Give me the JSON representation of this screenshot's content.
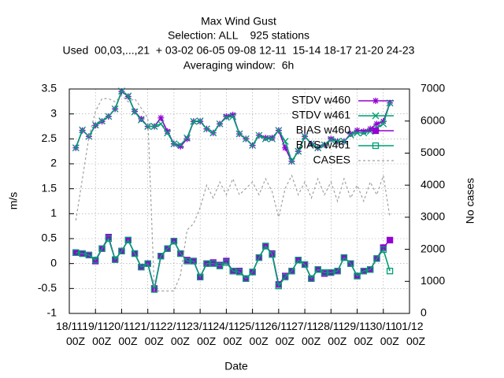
{
  "chart_data": {
    "type": "line",
    "title": "Max Wind Gust",
    "subtitle": [
      "Selection: ALL    925 stations",
      "Used  00,03,...,21  + 03-02 06-05 09-08 12-11  15-14 18-17 21-20 24-23",
      "Averaging window:  6h"
    ],
    "xlabel": "Date",
    "ylabel": "m/s",
    "y2label": "No cases",
    "x": [
      0.25,
      0.5,
      0.75,
      1,
      1.25,
      1.5,
      1.75,
      2,
      2.25,
      2.5,
      2.75,
      3,
      3.25,
      3.5,
      3.75,
      4,
      4.25,
      4.5,
      4.75,
      5,
      5.25,
      5.5,
      5.75,
      6,
      6.25,
      6.5,
      6.75,
      7,
      7.25,
      7.5,
      7.75,
      8,
      8.25,
      8.5,
      8.75,
      9,
      9.25,
      9.5,
      9.75,
      10,
      10.25,
      10.5,
      10.75,
      11,
      11.25,
      11.5,
      11.75,
      12,
      12.25
    ],
    "xlim": [
      0,
      13
    ],
    "xticks": [
      {
        "value": 0,
        "label": "18/11 00Z"
      },
      {
        "value": 1,
        "label": "19/11 00Z"
      },
      {
        "value": 2,
        "label": "20/11 00Z"
      },
      {
        "value": 3,
        "label": "21/11 00Z"
      },
      {
        "value": 4,
        "label": "22/11 00Z"
      },
      {
        "value": 5,
        "label": "23/11 00Z"
      },
      {
        "value": 6,
        "label": "24/11 00Z"
      },
      {
        "value": 7,
        "label": "25/11 00Z"
      },
      {
        "value": 8,
        "label": "26/11 00Z"
      },
      {
        "value": 9,
        "label": "27/11 00Z"
      },
      {
        "value": 10,
        "label": "28/11 00Z"
      },
      {
        "value": 11,
        "label": "29/11 00Z"
      },
      {
        "value": 12,
        "label": "30/11 00Z"
      },
      {
        "value": 13,
        "label": "01/12 00Z"
      }
    ],
    "ylim": [
      -1,
      3.5
    ],
    "yticks": [
      -1,
      -0.5,
      0,
      0.5,
      1,
      1.5,
      2,
      2.5,
      3,
      3.5
    ],
    "y2lim": [
      0,
      7000
    ],
    "y2ticks": [
      0,
      1000,
      2000,
      3000,
      4000,
      5000,
      6000,
      7000
    ],
    "grid": true,
    "legend": "top-right",
    "series": [
      {
        "name": "STDV w460",
        "color": "#9400d3",
        "marker": "star",
        "values": [
          2.32,
          2.67,
          2.55,
          2.77,
          2.85,
          2.95,
          3.1,
          3.45,
          3.35,
          3.05,
          2.9,
          2.75,
          2.75,
          2.92,
          2.65,
          2.4,
          2.35,
          2.5,
          2.85,
          2.85,
          2.7,
          2.62,
          2.8,
          2.95,
          2.98,
          2.6,
          2.5,
          2.37,
          2.57,
          2.52,
          2.52,
          2.67,
          2.32,
          2.05,
          2.25,
          2.55,
          2.4,
          2.32,
          2.38,
          2.5,
          2.45,
          2.45,
          2.6,
          2.67,
          2.65,
          2.7,
          2.8,
          2.85,
          3.22
        ]
      },
      {
        "name": "STDV w461",
        "color": "#009e73",
        "marker": "cross",
        "values": [
          2.32,
          2.68,
          2.55,
          2.78,
          2.86,
          2.95,
          3.1,
          3.46,
          3.36,
          3.04,
          2.88,
          2.75,
          2.75,
          2.8,
          2.62,
          2.4,
          2.38,
          2.52,
          2.85,
          2.86,
          2.7,
          2.62,
          2.8,
          2.93,
          2.95,
          2.6,
          2.5,
          2.37,
          2.57,
          2.5,
          2.5,
          2.67,
          2.45,
          2.05,
          2.25,
          2.55,
          2.4,
          2.32,
          2.38,
          2.48,
          2.45,
          2.45,
          2.58,
          2.62,
          2.62,
          2.65,
          2.72,
          2.8,
          3.22
        ]
      },
      {
        "name": "BIAS w460",
        "color": "#9400d3",
        "marker": "fsquare",
        "values": [
          0.22,
          0.2,
          0.17,
          0.05,
          0.3,
          0.53,
          0.08,
          0.25,
          0.47,
          0.2,
          -0.07,
          0.0,
          -0.5,
          0.15,
          0.3,
          0.45,
          0.2,
          0.07,
          0.05,
          -0.27,
          0.0,
          0.02,
          -0.03,
          0.05,
          -0.15,
          -0.15,
          -0.3,
          -0.17,
          0.12,
          0.35,
          0.2,
          -0.42,
          -0.25,
          -0.15,
          0.07,
          -0.02,
          -0.3,
          -0.12,
          -0.2,
          -0.18,
          -0.15,
          0.12,
          0.0,
          -0.25,
          -0.15,
          -0.12,
          0.1,
          0.32,
          0.47
        ]
      },
      {
        "name": "BIAS w461",
        "color": "#009e73",
        "marker": "square",
        "values": [
          0.22,
          0.2,
          0.17,
          0.07,
          0.3,
          0.5,
          0.08,
          0.25,
          0.47,
          0.2,
          -0.07,
          0.0,
          -0.52,
          0.15,
          0.3,
          0.45,
          0.2,
          0.05,
          0.05,
          -0.27,
          0.0,
          0.0,
          -0.05,
          0.02,
          -0.15,
          -0.17,
          -0.3,
          -0.17,
          0.12,
          0.35,
          0.18,
          -0.45,
          -0.27,
          -0.15,
          0.07,
          -0.02,
          -0.3,
          -0.12,
          -0.18,
          -0.18,
          -0.15,
          0.12,
          0.0,
          -0.25,
          -0.15,
          -0.12,
          0.1,
          0.28,
          -0.15
        ]
      },
      {
        "name": "CASES",
        "color": "#a0a0a0",
        "axis": "y2",
        "dashed": true,
        "values": [
          2900,
          4200,
          5500,
          6300,
          6700,
          6700,
          6600,
          6800,
          6600,
          6700,
          6400,
          6100,
          700,
          700,
          700,
          700,
          1200,
          2600,
          2800,
          3300,
          4000,
          3600,
          4100,
          3700,
          4200,
          3700,
          3900,
          4100,
          3700,
          4200,
          3800,
          3000,
          3900,
          4300,
          3700,
          4100,
          3600,
          4200,
          3700,
          4100,
          3500,
          4200,
          3600,
          4000,
          3500,
          4100,
          3700,
          4300,
          3000
        ]
      }
    ]
  }
}
